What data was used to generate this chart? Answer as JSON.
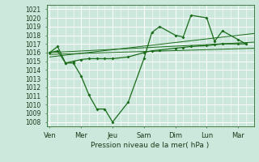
{
  "background_color": "#cce8dc",
  "grid_color": "#ffffff",
  "line_color": "#1a6b1a",
  "x_labels": [
    "Ven",
    "Mer",
    "Jeu",
    "Sam",
    "Dim",
    "Lun",
    "Mar"
  ],
  "x_positions": [
    0,
    2,
    4,
    6,
    8,
    10,
    12
  ],
  "xlabel": "Pression niveau de la mer( hPa )",
  "ylim": [
    1007.5,
    1021.5
  ],
  "yticks": [
    1008,
    1009,
    1010,
    1011,
    1012,
    1013,
    1014,
    1015,
    1016,
    1017,
    1018,
    1019,
    1020,
    1021
  ],
  "xlim": [
    -0.2,
    13.0
  ],
  "series_main_x": [
    0,
    0.5,
    1,
    1.5,
    2,
    2.5,
    3,
    3.5,
    4,
    5,
    6,
    6.5,
    7,
    8,
    8.5,
    9,
    10,
    10.5,
    11,
    12,
    12.5
  ],
  "series_main_y": [
    1016.0,
    1016.7,
    1014.8,
    1014.8,
    1013.3,
    1011.1,
    1009.5,
    1009.5,
    1008.0,
    1010.3,
    1015.3,
    1018.3,
    1019.0,
    1018.0,
    1017.8,
    1020.3,
    1020.0,
    1017.3,
    1018.5,
    1017.5,
    1017.0
  ],
  "series_flat_x": [
    0,
    0.5,
    1,
    1.5,
    2,
    2.5,
    3,
    3.5,
    4,
    5,
    6,
    6.5,
    7,
    8,
    8.5,
    9,
    10,
    10.5,
    11,
    12,
    12.5
  ],
  "series_flat_y": [
    1016.0,
    1016.2,
    1014.8,
    1015.0,
    1015.2,
    1015.3,
    1015.3,
    1015.3,
    1015.3,
    1015.5,
    1016.0,
    1016.2,
    1016.3,
    1016.5,
    1016.6,
    1016.7,
    1016.8,
    1016.9,
    1017.0,
    1017.0,
    1017.0
  ],
  "trend1_x": [
    0,
    13.0
  ],
  "trend1_y": [
    1015.8,
    1016.5
  ],
  "trend2_x": [
    0,
    13.0
  ],
  "trend2_y": [
    1015.5,
    1018.2
  ],
  "trend3_x": [
    0,
    13.0
  ],
  "trend3_y": [
    1016.0,
    1017.2
  ]
}
